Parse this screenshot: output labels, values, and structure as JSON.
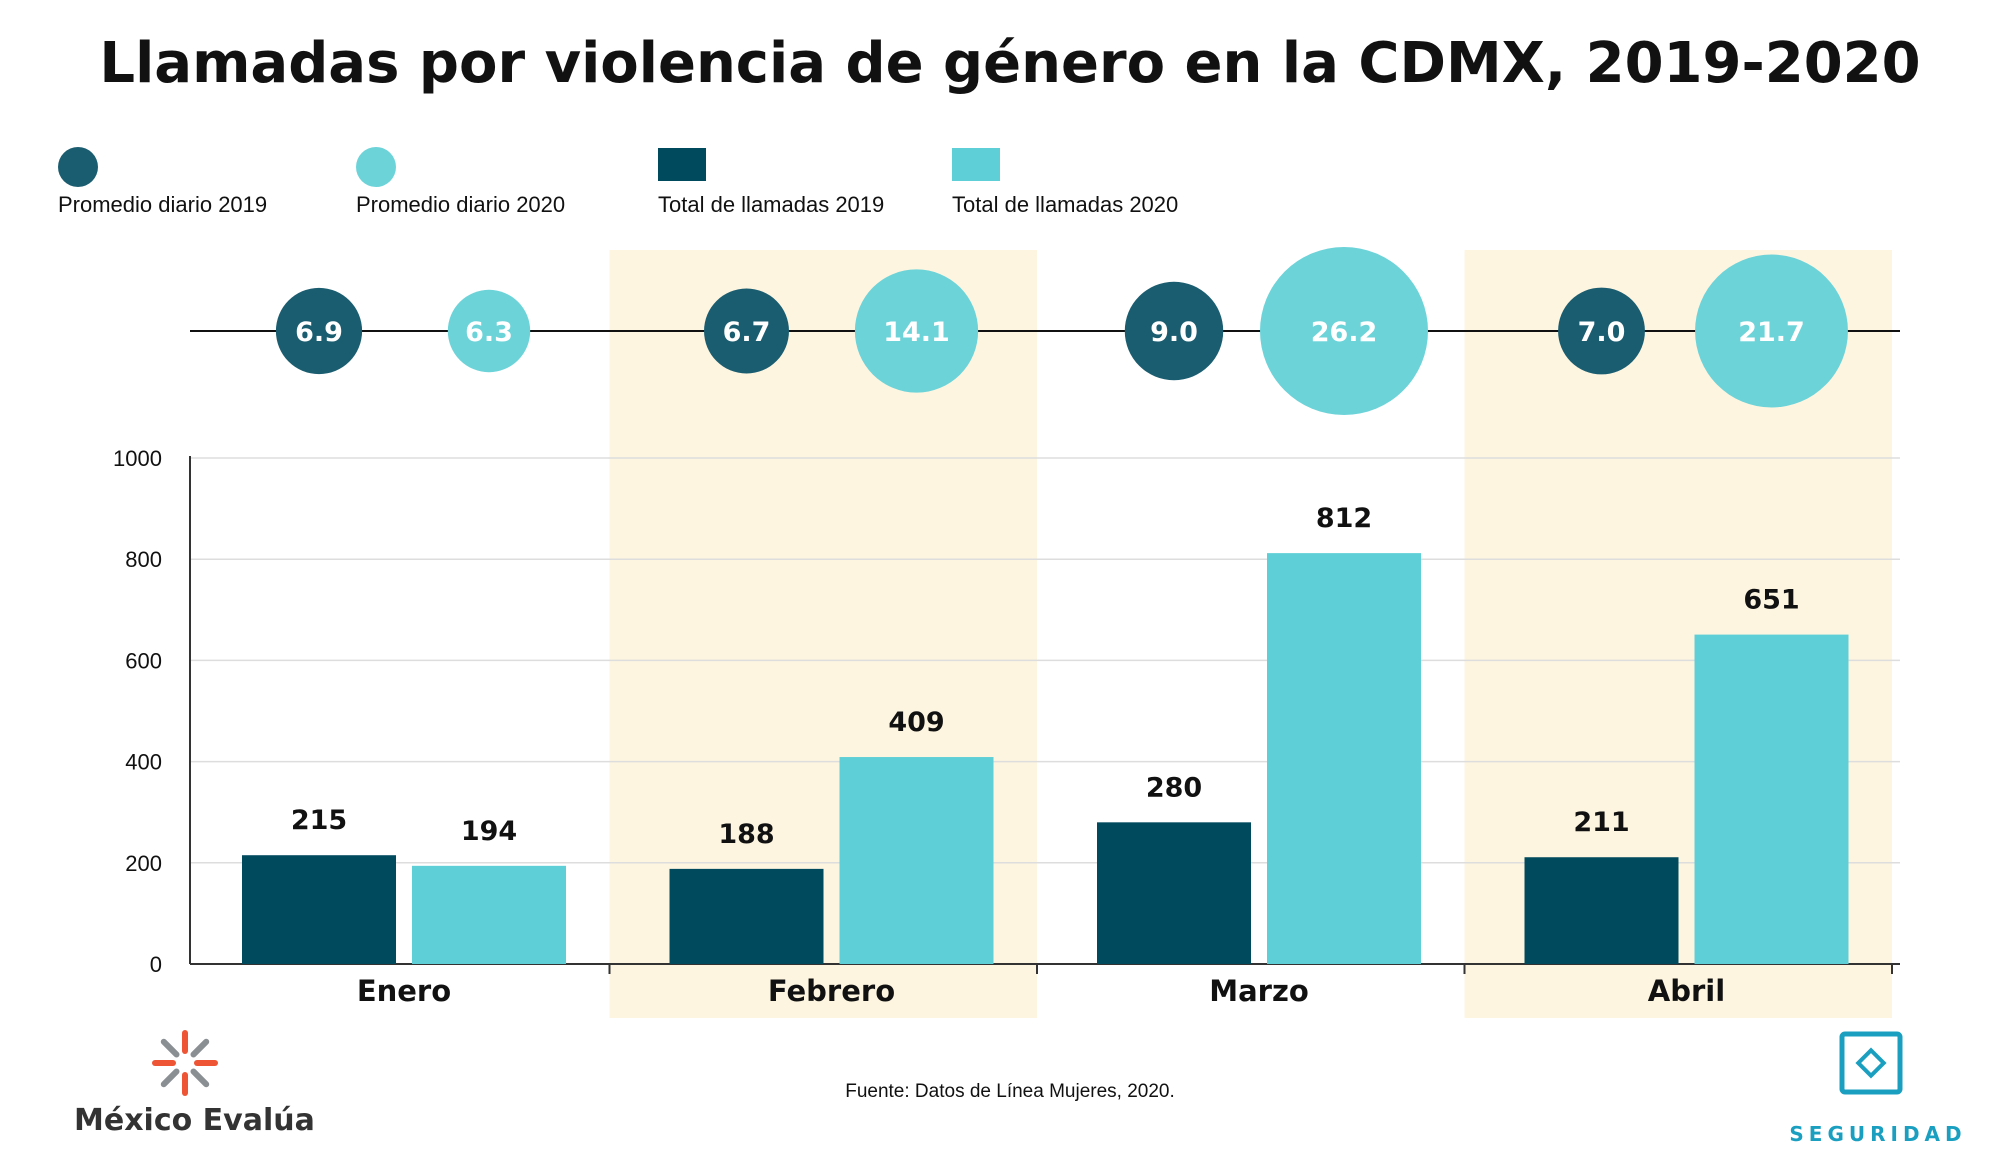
{
  "colors": {
    "dark": "#004a5e",
    "bubble_dark": "#1b5d70",
    "light": "#5ecfd6",
    "bubble_light": "#6cd3d9",
    "highlight": "#fdf5e0",
    "logo_orange": "#ee5535",
    "seguridad_blue": "#1a9fc0"
  },
  "legend": [
    {
      "label": "Promedio diario 2019",
      "shape": "circle",
      "color": "#1b5d70"
    },
    {
      "label": "Promedio diario 2020",
      "shape": "circle",
      "color": "#6cd3d9"
    },
    {
      "label": "Total de llamadas 2019",
      "shape": "rect",
      "color": "#004a5e"
    },
    {
      "label": "Total de llamadas 2020",
      "shape": "rect",
      "color": "#5ecfd6"
    }
  ],
  "chart_data": {
    "type": "bar",
    "title": "Llamadas por violencia de género en la CDMX, 2019-2020",
    "categories": [
      "Enero",
      "Febrero",
      "Marzo",
      "Abril"
    ],
    "highlighted_categories": [
      "Febrero",
      "Abril"
    ],
    "series": [
      {
        "name": "Total de llamadas 2019",
        "values": [
          215,
          188,
          280,
          211
        ],
        "labels": [
          "215",
          "188",
          "280",
          "211"
        ]
      },
      {
        "name": "Total de llamadas 2020",
        "values": [
          194,
          409,
          812,
          651
        ],
        "labels": [
          "194",
          "409",
          "812",
          "651"
        ]
      }
    ],
    "bubble_series": [
      {
        "name": "Promedio diario 2019",
        "values": [
          6.9,
          6.7,
          9.0,
          7.0
        ],
        "labels": [
          "6.9",
          "6.7",
          "9.0",
          "7.0"
        ]
      },
      {
        "name": "Promedio diario 2020",
        "values": [
          6.3,
          14.1,
          26.2,
          21.7
        ],
        "labels": [
          "6.3",
          "14.1",
          "26.2",
          "21.7"
        ]
      }
    ],
    "ylim": [
      0,
      1000
    ],
    "yticks": [
      0,
      200,
      400,
      600,
      800,
      1000
    ],
    "ytick_labels": [
      "0",
      "200",
      "400",
      "600",
      "800",
      "1000"
    ],
    "grid": true,
    "legend_position": "top-left"
  },
  "source": "Fuente: Datos de Línea Mujeres, 2020.",
  "brand": {
    "name": "México Evalúa",
    "section": "SEGURIDAD"
  }
}
